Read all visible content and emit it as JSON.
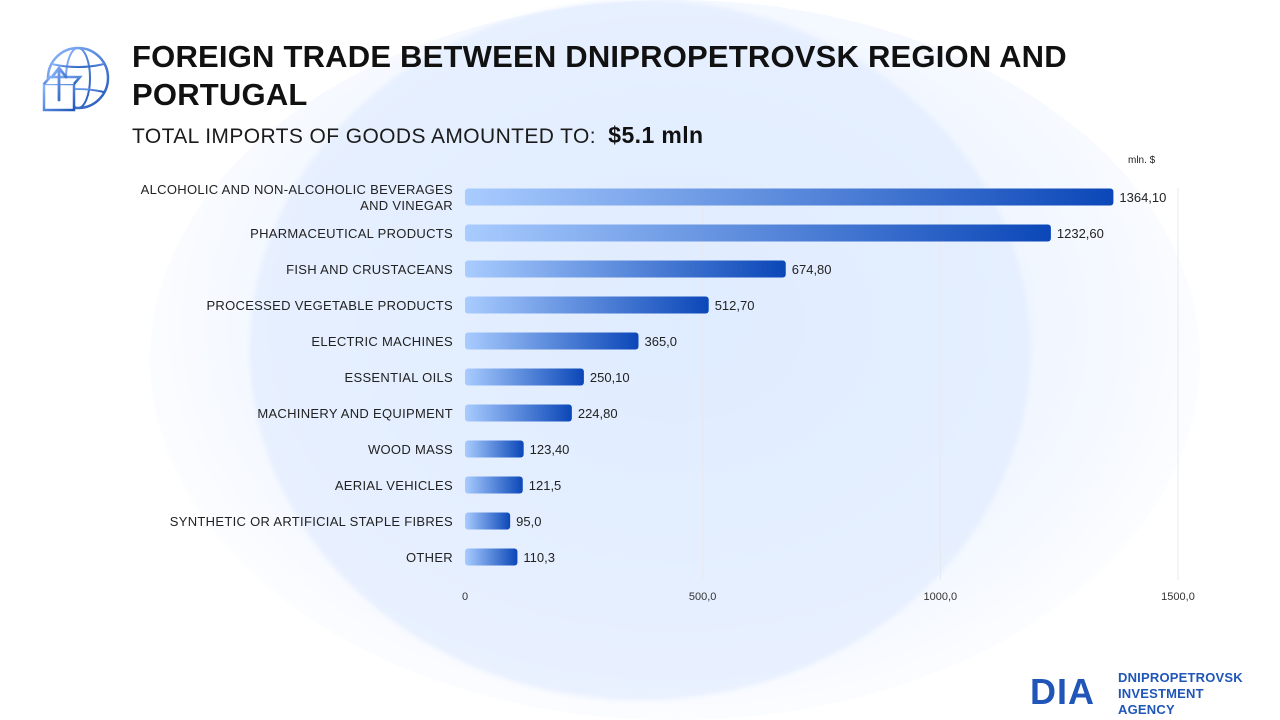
{
  "header": {
    "title": "FOREIGN TRADE BETWEEN DNIPROPETROVSK REGION AND PORTUGAL",
    "subtitle_label": "TOTAL IMPORTS OF GOODS AMOUNTED TO:",
    "subtitle_value": "$5.1  mln",
    "icon": "globe-box-upload-icon"
  },
  "chart_data": {
    "type": "bar",
    "orientation": "horizontal",
    "unit": "mln. $",
    "categories": [
      "ALCOHOLIC AND NON-ALCOHOLIC BEVERAGES AND VINEGAR",
      "PHARMACEUTICAL PRODUCTS",
      "FISH AND CRUSTACEANS",
      "PROCESSED VEGETABLE PRODUCTS",
      "ELECTRIC MACHINES",
      "ESSENTIAL OILS",
      "MACHINERY AND EQUIPMENT",
      "WOOD MASS",
      "AERIAL VEHICLES",
      "SYNTHETIC OR ARTIFICIAL STAPLE FIBRES",
      "OTHER"
    ],
    "category_lines": [
      [
        "ALCOHOLIC AND NON-ALCOHOLIC BEVERAGES",
        "AND VINEGAR"
      ],
      [
        "PHARMACEUTICAL PRODUCTS"
      ],
      [
        "FISH AND CRUSTACEANS"
      ],
      [
        "PROCESSED VEGETABLE PRODUCTS"
      ],
      [
        "ELECTRIC MACHINES"
      ],
      [
        "ESSENTIAL OILS"
      ],
      [
        "MACHINERY AND EQUIPMENT"
      ],
      [
        "WOOD MASS"
      ],
      [
        "AERIAL VEHICLES"
      ],
      [
        "SYNTHETIC OR ARTIFICIAL STAPLE FIBRES"
      ],
      [
        "OTHER"
      ]
    ],
    "values": [
      1364.1,
      1232.6,
      674.8,
      512.7,
      365.0,
      250.1,
      224.8,
      123.4,
      121.5,
      95.0,
      110.3
    ],
    "value_labels": [
      "1364,10",
      "1232,60",
      "674,80",
      "512,70",
      "365,0",
      "250,10",
      "224,80",
      "123,40",
      "121,5",
      "95,0",
      "110,3"
    ],
    "x_ticks": [
      0,
      500,
      1000,
      1500
    ],
    "x_tick_labels": [
      "0",
      "500,0",
      "1000,0",
      "1500,0"
    ],
    "xlim": [
      0,
      1500
    ],
    "grid": true,
    "colors": {
      "bar_start": "#a9ccff",
      "bar_end": "#0b47b8",
      "grid": "#e6e9ef"
    }
  },
  "logo": {
    "mark": "DIA",
    "line1": "DNIPROPETROVSK",
    "line2": "INVESTMENT AGENCY",
    "color": "#1f56b8"
  }
}
